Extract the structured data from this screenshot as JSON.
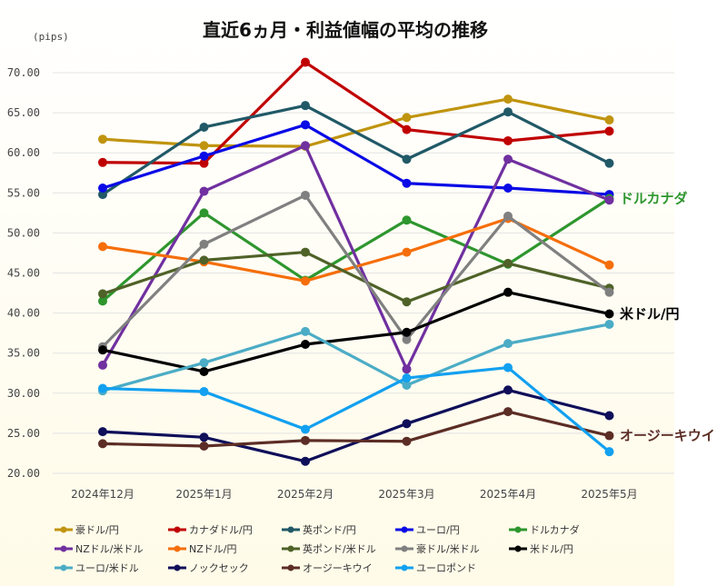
{
  "chart_data": {
    "type": "line",
    "title": "直近6ヵ月・利益値幅の平均の推移",
    "unit": "(pips)",
    "categories": [
      "2024年12月",
      "2025年1月",
      "2025年2月",
      "2025年3月",
      "2025年4月",
      "2025年5月"
    ],
    "ylim": [
      20,
      70
    ],
    "yticks": [
      "20.00",
      "25.00",
      "30.00",
      "35.00",
      "40.00",
      "45.00",
      "50.00",
      "55.00",
      "60.00",
      "65.00",
      "70.00"
    ],
    "grid": true,
    "legend_position": "bottom",
    "series": [
      {
        "name": "豪ドル/円",
        "color": "#C0940F",
        "values": [
          61.7,
          60.9,
          60.8,
          64.4,
          66.7,
          64.1
        ]
      },
      {
        "name": "カナダドル/円",
        "color": "#C00000",
        "values": [
          58.8,
          58.7,
          71.3,
          62.9,
          61.5,
          62.7
        ]
      },
      {
        "name": "英ポンド/円",
        "color": "#215967",
        "values": [
          54.8,
          63.2,
          65.9,
          59.2,
          65.1,
          58.7
        ]
      },
      {
        "name": "ユーロ/円",
        "color": "#0A0AE6",
        "values": [
          55.6,
          59.6,
          63.5,
          56.2,
          55.6,
          54.8
        ]
      },
      {
        "name": "ドルカナダ",
        "color": "#2E962E",
        "values": [
          41.5,
          52.5,
          44.1,
          51.6,
          46.1,
          54.3
        ]
      },
      {
        "name": "NZドル/米ドル",
        "color": "#7030A0",
        "values": [
          33.5,
          55.2,
          60.9,
          33.0,
          59.2,
          54.1
        ]
      },
      {
        "name": "NZドル/円",
        "color": "#F56E0A",
        "values": [
          48.3,
          46.4,
          44.0,
          47.6,
          51.8,
          46.0
        ]
      },
      {
        "name": "英ポンド/米ドル",
        "color": "#4F6228",
        "values": [
          42.4,
          46.6,
          47.6,
          41.4,
          46.2,
          43.1
        ]
      },
      {
        "name": "豪ドル/米ドル",
        "color": "#808080",
        "values": [
          35.8,
          48.6,
          54.7,
          36.7,
          52.1,
          42.6
        ]
      },
      {
        "name": "米ドル/円",
        "color": "#000000",
        "values": [
          35.4,
          32.7,
          36.1,
          37.6,
          42.6,
          39.9
        ]
      },
      {
        "name": "ユーロ/米ドル",
        "color": "#4BACC6",
        "values": [
          30.3,
          33.8,
          37.7,
          31.0,
          36.2,
          38.6
        ]
      },
      {
        "name": "ノックセック",
        "color": "#0F0F5A",
        "values": [
          25.2,
          24.5,
          21.5,
          26.2,
          30.4,
          27.2
        ]
      },
      {
        "name": "オージーキウイ",
        "color": "#5C2D25",
        "values": [
          23.7,
          23.4,
          24.1,
          24.0,
          27.7,
          24.7
        ]
      },
      {
        "name": "ユーロポンド",
        "color": "#12A0F0",
        "values": [
          30.6,
          30.2,
          25.5,
          31.9,
          33.2,
          22.7
        ]
      }
    ],
    "end_labels": [
      {
        "text": "ドルカナダ",
        "series": "ドルカナダ",
        "color": "#2E962E"
      },
      {
        "text": "米ドル/円",
        "series": "米ドル/円",
        "color": "#000000"
      },
      {
        "text": "オージーキウイ",
        "series": "オージーキウイ",
        "color": "#5C2D25"
      }
    ]
  }
}
